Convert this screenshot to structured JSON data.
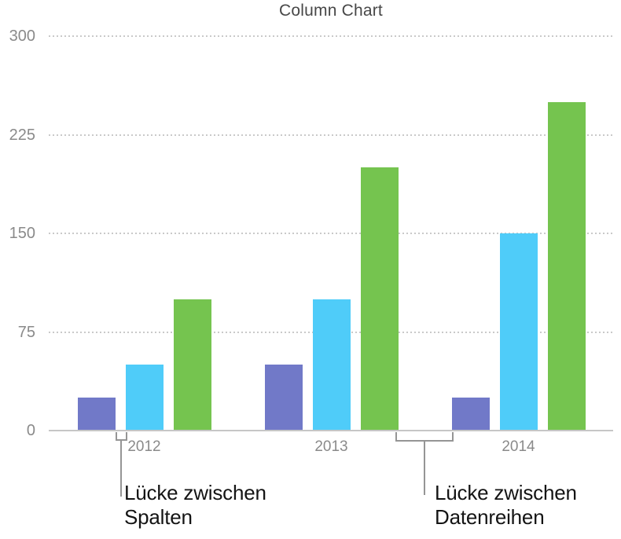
{
  "title": "Column Chart",
  "chart_data": {
    "type": "bar",
    "title": "Column Chart",
    "categories": [
      "2012",
      "2013",
      "2014"
    ],
    "series": [
      {
        "name": "purple",
        "color": "#7179c8",
        "values": [
          25,
          50,
          25
        ]
      },
      {
        "name": "blue",
        "color": "#4fccf9",
        "values": [
          50,
          100,
          150
        ]
      },
      {
        "name": "green",
        "color": "#75c44f",
        "values": [
          100,
          200,
          250
        ]
      }
    ],
    "xlabel": "",
    "ylabel": "",
    "ylim": [
      0,
      300
    ],
    "yticks": [
      300,
      225,
      150,
      75,
      0
    ],
    "grid": "horizontal-dotted",
    "legend": "none"
  },
  "annotations": {
    "columns_gap": {
      "line1": "Lücke zwischen",
      "line2": "Spalten"
    },
    "series_gap": {
      "line1": "Lücke zwischen",
      "line2": "Datenreihen"
    }
  },
  "colors": {
    "title_text": "#474747",
    "axis_text": "#8a8a8a",
    "gridline": "#c9c9c9",
    "baseline": "#c6c6c6",
    "callout_line": "#959595",
    "callout_text": "#141414"
  }
}
